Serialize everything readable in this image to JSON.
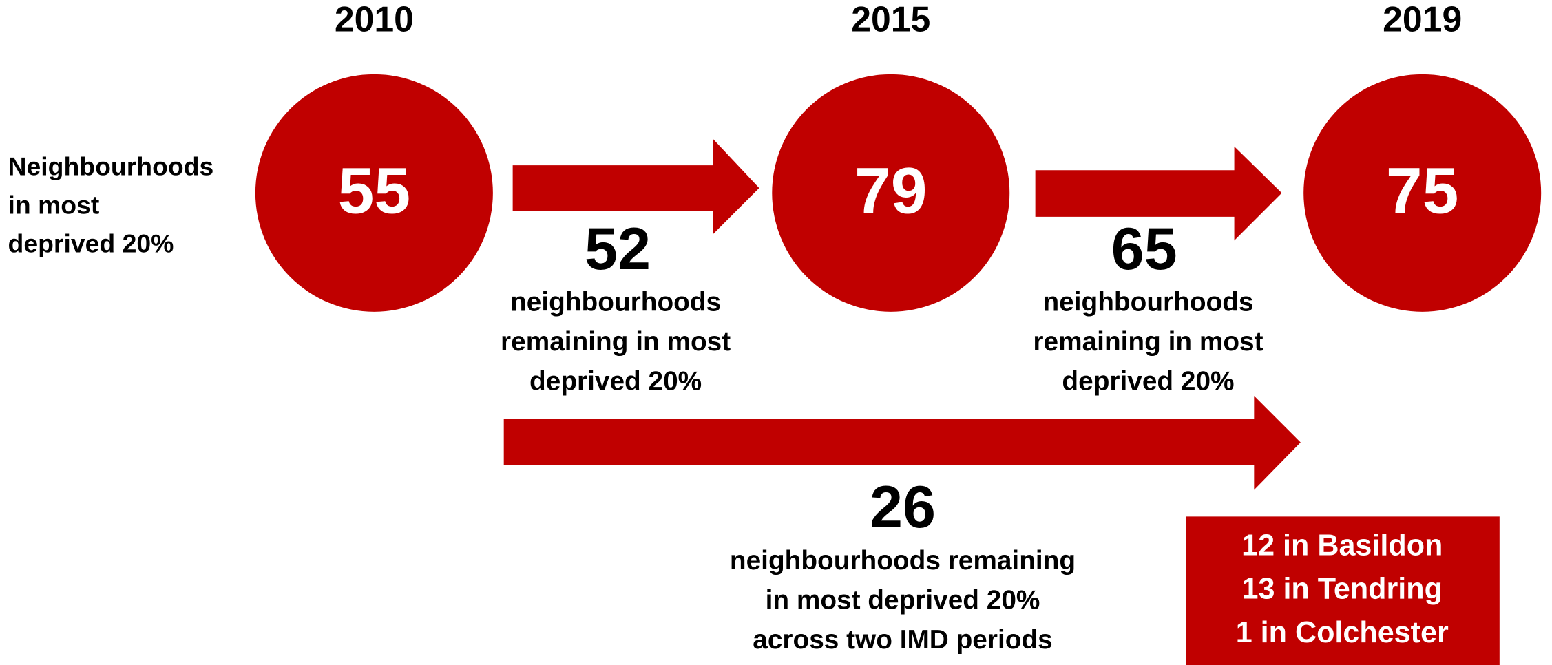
{
  "row_label": [
    "Neighbourhoods",
    "in most",
    "deprived 20%"
  ],
  "periods": [
    {
      "year": 2010,
      "count": 55
    },
    {
      "year": 2015,
      "count": 79
    },
    {
      "year": 2019,
      "count": 75
    }
  ],
  "transitions": [
    {
      "number": 52,
      "text": [
        "neighbourhoods",
        "remaining in most",
        "deprived 20%"
      ]
    },
    {
      "number": 65,
      "text": [
        "neighbourhoods",
        "remaining in most",
        "deprived 20%"
      ]
    }
  ],
  "long_transition": {
    "number": 26,
    "text": [
      "neighbourhoods remaining",
      "in most deprived 20%",
      "across two IMD periods"
    ]
  },
  "breakdown": [
    "12 in Basildon",
    "13 in Tendring",
    "1 in Colchester"
  ]
}
